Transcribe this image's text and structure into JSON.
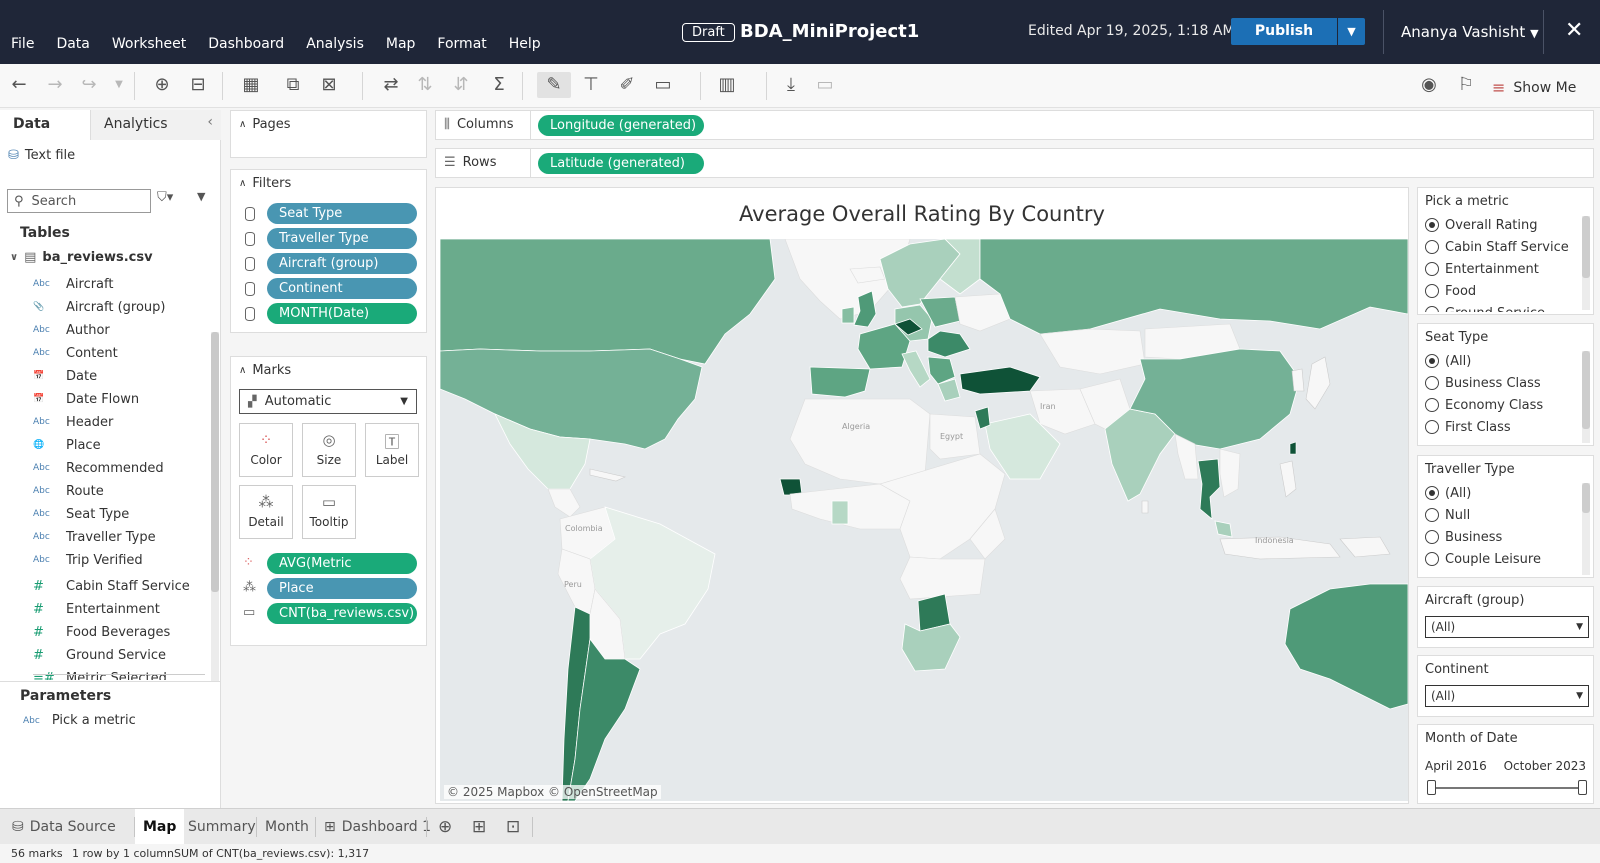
{
  "app": {
    "menu": [
      "File",
      "Data",
      "Worksheet",
      "Dashboard",
      "Analysis",
      "Map",
      "Format",
      "Help"
    ],
    "draft_label": "Draft",
    "workbook_title": "BDA_MiniProject1",
    "edited": "Edited Apr 19, 2025, 1:18 AM",
    "publish_label": "Publish",
    "user_name": "Ananya Vashisht"
  },
  "toolbar": {
    "show_me_label": "Show Me"
  },
  "data_pane": {
    "tabs": [
      "Data",
      "Analytics"
    ],
    "source": "Text file",
    "search_placeholder": "Search",
    "tables_heading": "Tables",
    "table_name": "ba_reviews.csv",
    "fields": [
      {
        "type": "Abc",
        "name": "Aircraft",
        "role": "dim"
      },
      {
        "type": "📎",
        "name": "Aircraft (group)",
        "role": "dim"
      },
      {
        "type": "Abc",
        "name": "Author",
        "role": "dim"
      },
      {
        "type": "Abc",
        "name": "Content",
        "role": "dim"
      },
      {
        "type": "📅",
        "name": "Date",
        "role": "dim"
      },
      {
        "type": "📅",
        "name": "Date Flown",
        "role": "dim"
      },
      {
        "type": "Abc",
        "name": "Header",
        "role": "dim"
      },
      {
        "type": "🌐",
        "name": "Place",
        "role": "dim"
      },
      {
        "type": "Abc",
        "name": "Recommended",
        "role": "dim"
      },
      {
        "type": "Abc",
        "name": "Route",
        "role": "dim"
      },
      {
        "type": "Abc",
        "name": "Seat Type",
        "role": "dim"
      },
      {
        "type": "Abc",
        "name": "Traveller Type",
        "role": "dim"
      },
      {
        "type": "Abc",
        "name": "Trip Verified",
        "role": "dim"
      },
      {
        "type": "#",
        "name": "Cabin Staff Service",
        "role": "meas"
      },
      {
        "type": "#",
        "name": "Entertainment",
        "role": "meas"
      },
      {
        "type": "#",
        "name": "Food Beverages",
        "role": "meas"
      },
      {
        "type": "#",
        "name": "Ground Service",
        "role": "meas"
      },
      {
        "type": "=#",
        "name": "Metric Selected",
        "role": "meas"
      }
    ],
    "parameters_heading": "Parameters",
    "parameter_type": "Abc",
    "parameter_name": "Pick a metric"
  },
  "pages": {
    "label": "Pages"
  },
  "filters": {
    "label": "Filters",
    "items": [
      {
        "name": "Seat Type",
        "color": "blue"
      },
      {
        "name": "Traveller Type",
        "color": "blue"
      },
      {
        "name": "Aircraft (group)",
        "color": "blue"
      },
      {
        "name": "Continent",
        "color": "blue"
      },
      {
        "name": "MONTH(Date)",
        "color": "green"
      }
    ]
  },
  "marks": {
    "label": "Marks",
    "mark_type": "Automatic",
    "buttons": [
      "Color",
      "Size",
      "Label",
      "Detail",
      "Tooltip"
    ],
    "fields": [
      {
        "name": "AVG(Metric Selected)",
        "color": "green",
        "icon": "color"
      },
      {
        "name": "Place",
        "color": "blue",
        "icon": "detail"
      },
      {
        "name": "CNT(ba_reviews.csv)",
        "color": "green",
        "icon": "tooltip"
      }
    ]
  },
  "shelves": {
    "columns_label": "Columns",
    "columns_pill": "Longitude (generated)",
    "rows_label": "Rows",
    "rows_pill": "Latitude (generated)"
  },
  "view": {
    "title": "Average Overall Rating By Country",
    "attribution": "© 2025 Mapbox  © OpenStreetMap",
    "labels": [
      "Algeria",
      "Egypt",
      "Iran",
      "Colombia",
      "Peru",
      "Indonesia"
    ]
  },
  "cards": {
    "metric": {
      "title": "Pick a metric",
      "options": [
        "Overall Rating",
        "Cabin Staff Service",
        "Entertainment",
        "Food",
        "Ground Service"
      ],
      "selected": 0
    },
    "seat_type": {
      "title": "Seat Type",
      "options": [
        "(All)",
        "Business Class",
        "Economy Class",
        "First Class"
      ],
      "selected": 0
    },
    "traveller_type": {
      "title": "Traveller Type",
      "options": [
        "(All)",
        "Null",
        "Business",
        "Couple Leisure"
      ],
      "selected": 0
    },
    "aircraft_group": {
      "title": "Aircraft (group)",
      "value": "(All)"
    },
    "continent": {
      "title": "Continent",
      "value": "(All)"
    },
    "month": {
      "title": "Month of Date",
      "start": "April 2016",
      "end": "October 2023"
    }
  },
  "bottom_tabs": {
    "data_source": "Data Source",
    "sheets": [
      "Map",
      "Summary",
      "Month"
    ],
    "active": "Map",
    "dashboard": "Dashboard 1"
  },
  "status": {
    "marks": "56 marks",
    "dims": "1 row by 1 column",
    "sum": "SUM of CNT(ba_reviews.csv): 1,317"
  },
  "colors": {
    "topbar": "#1f2638",
    "publish": "#1c6fb5",
    "pill_blue": "#4996b2",
    "pill_green": "#1aaa79",
    "map_ocean": "#e5e9eb",
    "map_land": "#f7f7f7",
    "scale_light": "#d9ece2",
    "scale_dark": "#0f5237"
  }
}
